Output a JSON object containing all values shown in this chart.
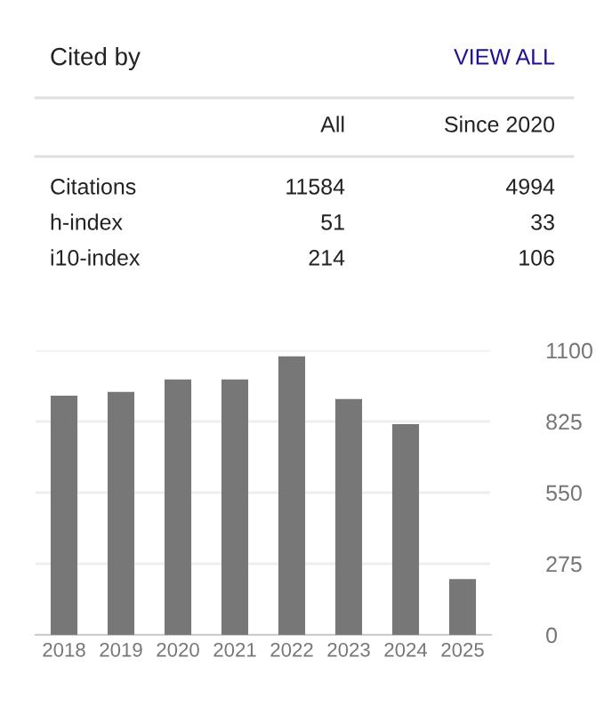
{
  "chart_data": [
    {
      "type": "other",
      "title": "Cited by",
      "annotations": [
        "VIEW ALL",
        "All",
        "Since 2020",
        "Citations",
        "11584",
        "4994",
        "h-index",
        "51",
        "33",
        "i10-index",
        "214",
        "106"
      ]
    },
    {
      "type": "bar",
      "categories": [
        "2018",
        "2019",
        "2020",
        "2021",
        "2022",
        "2023",
        "2024",
        "2025"
      ],
      "values": [
        925,
        939,
        987,
        987,
        1077,
        912,
        815,
        216
      ],
      "color": "#777777",
      "ylim": [
        0,
        1100
      ],
      "yticks": [
        0,
        275,
        550,
        825,
        1100
      ],
      "grid": "y"
    }
  ]
}
